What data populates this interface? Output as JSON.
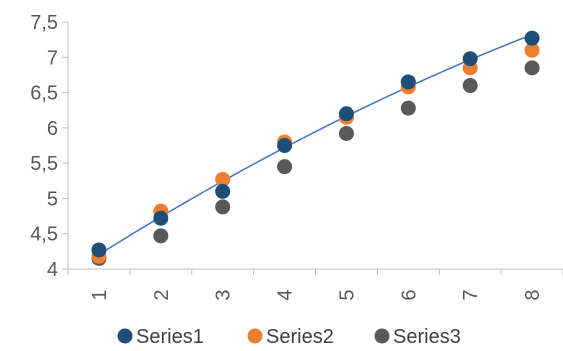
{
  "chart_data": {
    "type": "scatter",
    "categories": [
      "1",
      "2",
      "3",
      "4",
      "5",
      "6",
      "7",
      "8"
    ],
    "x": [
      1,
      2,
      3,
      4,
      5,
      6,
      7,
      8
    ],
    "series": [
      {
        "name": "Series1",
        "color": "#1f4e79",
        "values": [
          4.27,
          4.72,
          5.1,
          5.75,
          6.2,
          6.65,
          6.98,
          7.27
        ]
      },
      {
        "name": "Series2",
        "color": "#ed7d31",
        "values": [
          4.18,
          4.82,
          5.27,
          5.8,
          6.15,
          6.58,
          6.85,
          7.1
        ]
      },
      {
        "name": "Series3",
        "color": "#595959",
        "values": [
          4.15,
          4.47,
          4.88,
          5.45,
          5.92,
          6.28,
          6.6,
          6.85
        ]
      }
    ],
    "trendline": {
      "series": "Series1",
      "type": "polynomial",
      "color": "#4472c4"
    },
    "title": "",
    "xlabel": "",
    "ylabel": "",
    "ylim": [
      4,
      7.5
    ],
    "yticks": [
      "4",
      "4,5",
      "5",
      "5,5",
      "6",
      "6,5",
      "7",
      "7,5"
    ],
    "grid": false,
    "legend_position": "bottom"
  }
}
